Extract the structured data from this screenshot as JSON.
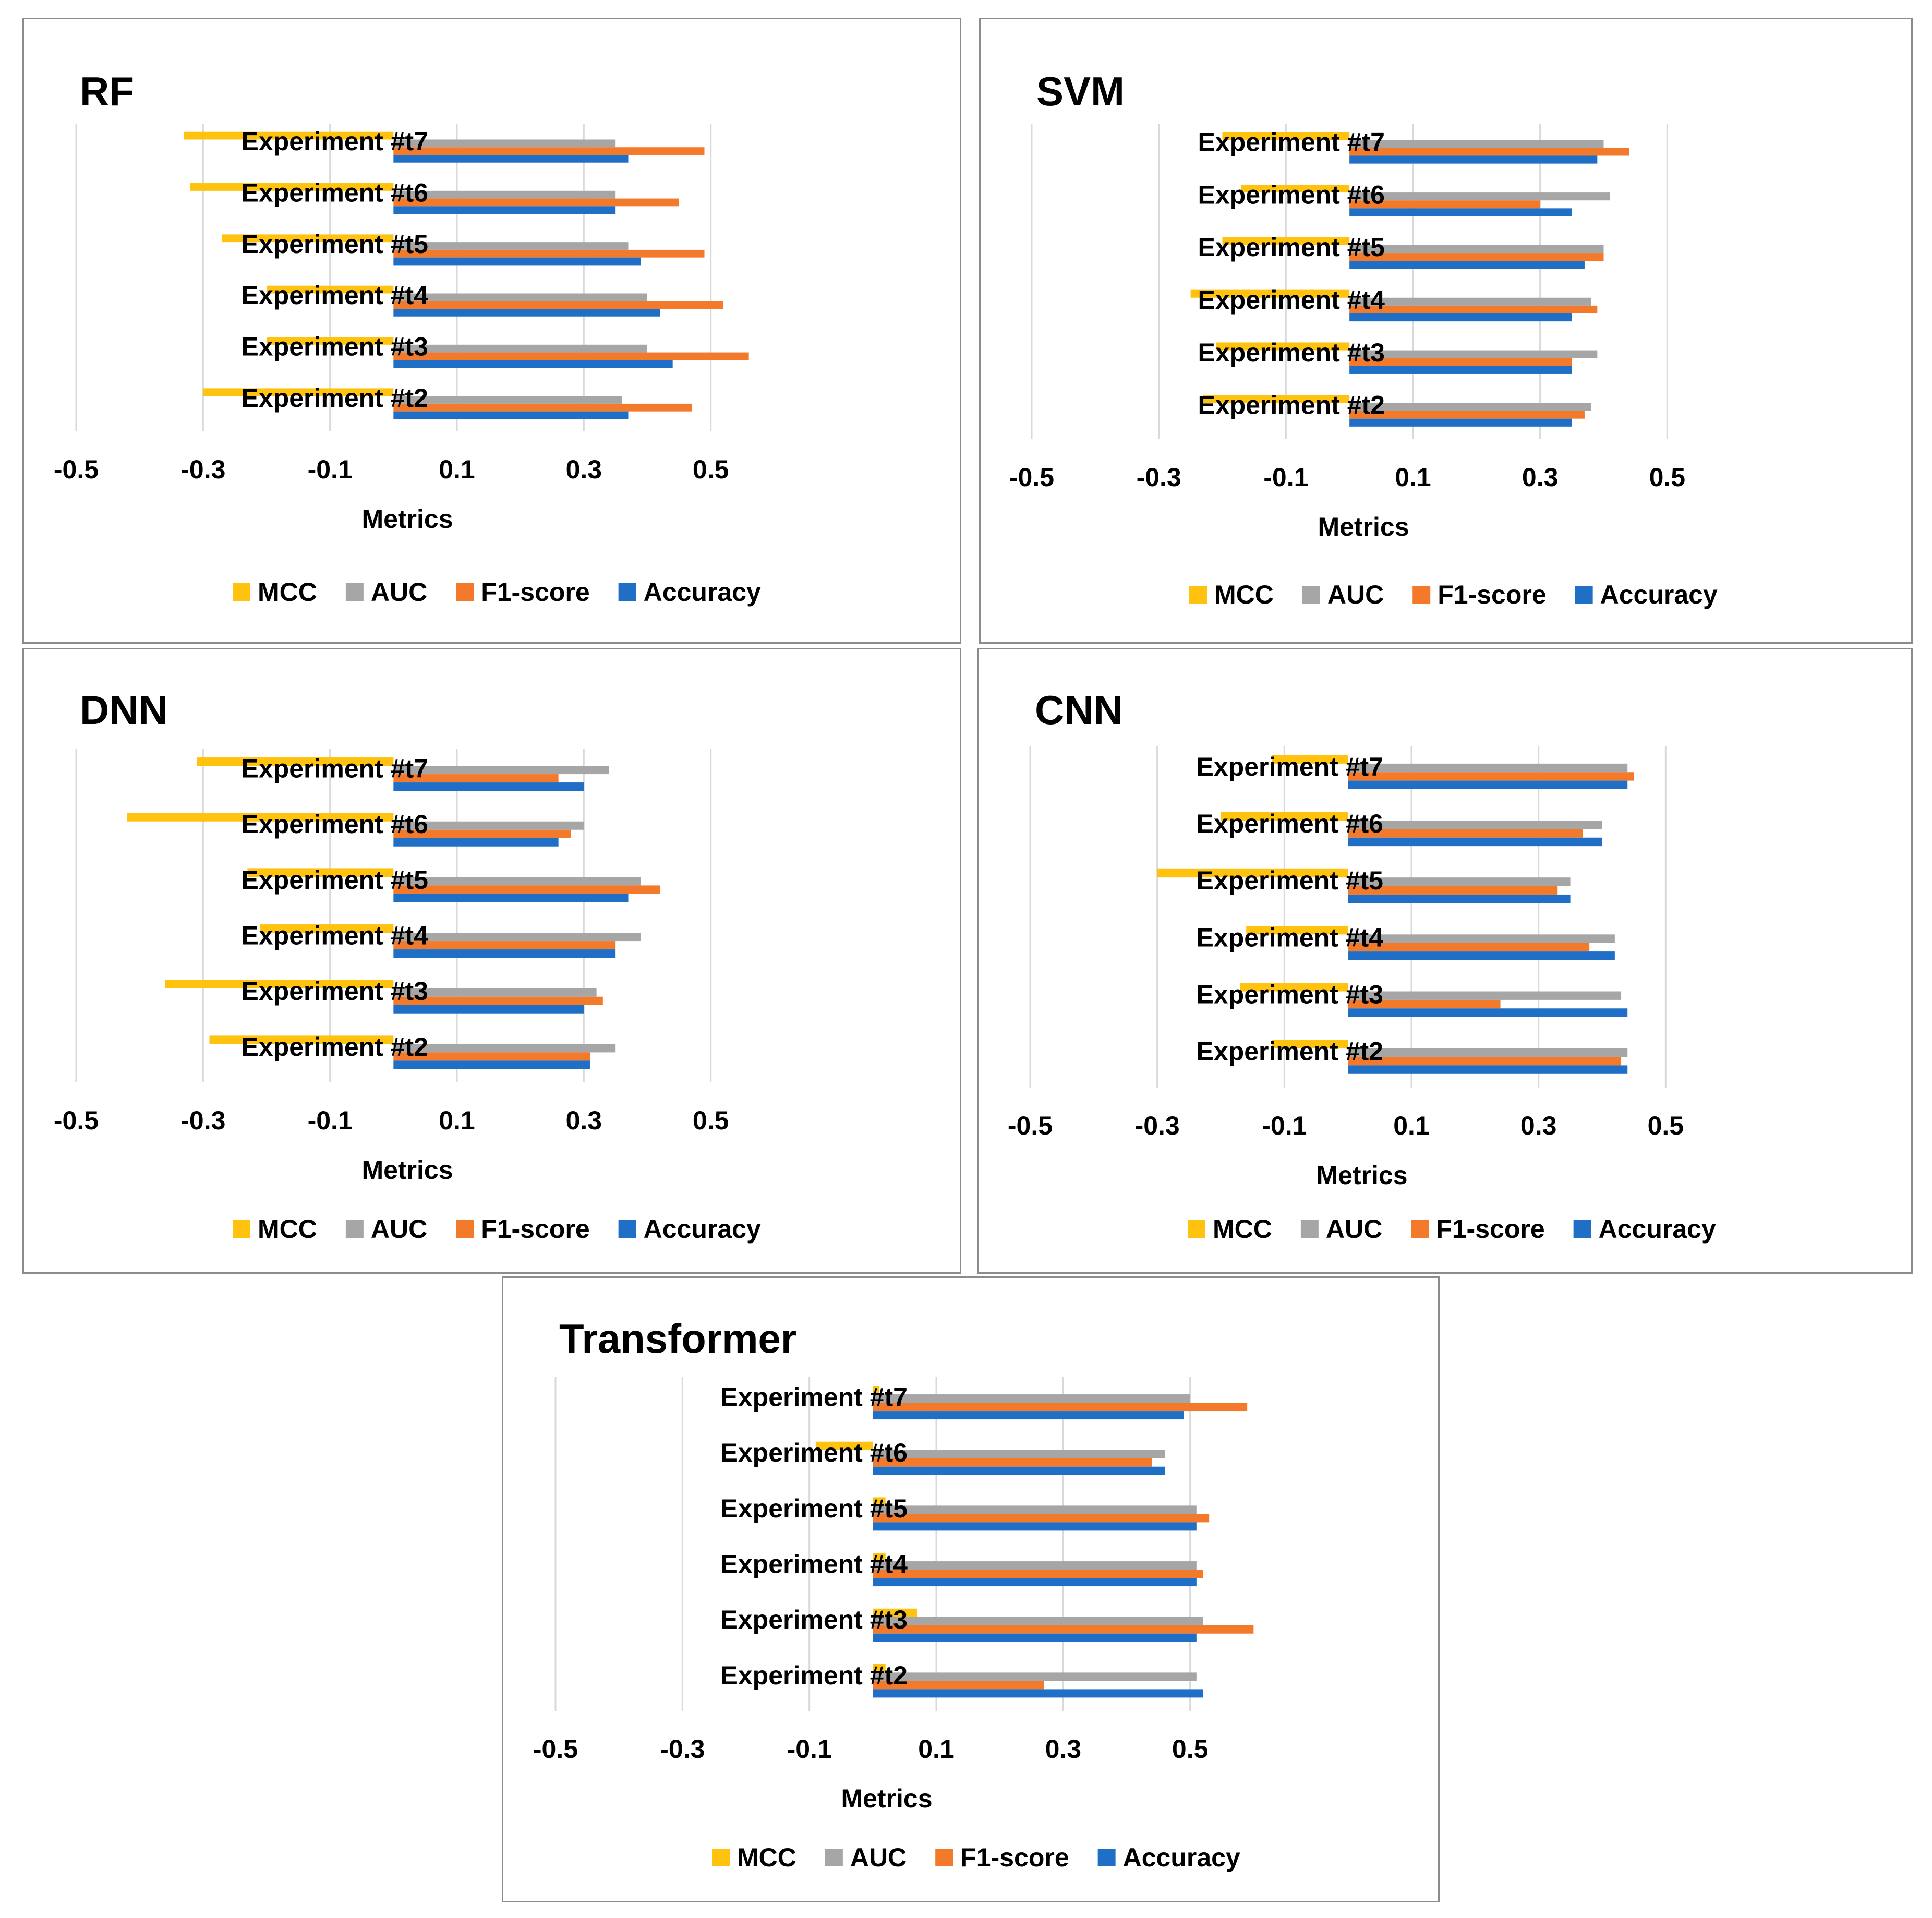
{
  "chart_data": [
    {
      "type": "bar",
      "orientation": "horizontal",
      "title": "RF",
      "xlabel": "Metrics",
      "ylabel": "",
      "xlim": [
        -0.5,
        0.7
      ],
      "xticks": [
        "-0.5",
        "-0.3",
        "-0.1",
        "0.1",
        "0.3",
        "0.5"
      ],
      "categories": [
        "Experiment #t2",
        "Experiment #t3",
        "Experiment #t4",
        "Experiment #t5",
        "Experiment #t6",
        "Experiment #t7"
      ],
      "series": [
        {
          "name": "Accuracy",
          "color": "#1f6fc6",
          "values": [
            0.37,
            0.44,
            0.42,
            0.39,
            0.35,
            0.37
          ]
        },
        {
          "name": "F1-score",
          "color": "#f47a2b",
          "values": [
            0.47,
            0.56,
            0.52,
            0.49,
            0.45,
            0.49
          ]
        },
        {
          "name": "AUC",
          "color": "#a6a6a6",
          "values": [
            0.36,
            0.4,
            0.4,
            0.37,
            0.35,
            0.35
          ]
        },
        {
          "name": "MCC",
          "color": "#ffc20e",
          "values": [
            -0.3,
            -0.2,
            -0.2,
            -0.27,
            -0.32,
            -0.33
          ]
        }
      ],
      "legend": [
        "MCC",
        "AUC",
        "F1-score",
        "Accuracy"
      ],
      "legend_position": "bottom",
      "grid": true
    },
    {
      "type": "bar",
      "orientation": "horizontal",
      "title": "SVM",
      "xlabel": "Metrics",
      "ylabel": "",
      "xlim": [
        -0.5,
        0.7
      ],
      "xticks": [
        "-0.5",
        "-0.3",
        "-0.1",
        "0.1",
        "0.3",
        "0.5"
      ],
      "categories": [
        "Experiment #t2",
        "Experiment #t3",
        "Experiment #t4",
        "Experiment #t5",
        "Experiment #t6",
        "Experiment #t7"
      ],
      "series": [
        {
          "name": "Accuracy",
          "color": "#1f6fc6",
          "values": [
            0.35,
            0.35,
            0.35,
            0.37,
            0.35,
            0.39
          ]
        },
        {
          "name": "F1-score",
          "color": "#f47a2b",
          "values": [
            0.37,
            0.35,
            0.39,
            0.4,
            0.3,
            0.44
          ]
        },
        {
          "name": "AUC",
          "color": "#a6a6a6",
          "values": [
            0.38,
            0.39,
            0.38,
            0.4,
            0.41,
            0.4
          ]
        },
        {
          "name": "MCC",
          "color": "#ffc20e",
          "values": [
            -0.23,
            -0.21,
            -0.25,
            -0.2,
            -0.17,
            -0.2
          ]
        }
      ],
      "legend": [
        "MCC",
        "AUC",
        "F1-score",
        "Accuracy"
      ],
      "legend_position": "bottom",
      "grid": true
    },
    {
      "type": "bar",
      "orientation": "horizontal",
      "title": "DNN",
      "xlabel": "Metrics",
      "ylabel": "",
      "xlim": [
        -0.5,
        0.7
      ],
      "xticks": [
        "-0.5",
        "-0.3",
        "-0.1",
        "0.1",
        "0.3",
        "0.5"
      ],
      "categories": [
        "Experiment #t2",
        "Experiment #t3",
        "Experiment #t4",
        "Experiment #t5",
        "Experiment #t6",
        "Experiment #t7"
      ],
      "series": [
        {
          "name": "Accuracy",
          "color": "#1f6fc6",
          "values": [
            0.31,
            0.3,
            0.35,
            0.37,
            0.26,
            0.3
          ]
        },
        {
          "name": "F1-score",
          "color": "#f47a2b",
          "values": [
            0.31,
            0.33,
            0.35,
            0.42,
            0.28,
            0.26
          ]
        },
        {
          "name": "AUC",
          "color": "#a6a6a6",
          "values": [
            0.35,
            0.32,
            0.39,
            0.39,
            0.3,
            0.34
          ]
        },
        {
          "name": "MCC",
          "color": "#ffc20e",
          "values": [
            -0.29,
            -0.36,
            -0.21,
            -0.23,
            -0.42,
            -0.31
          ]
        }
      ],
      "legend": [
        "MCC",
        "AUC",
        "F1-score",
        "Accuracy"
      ],
      "legend_position": "bottom",
      "grid": true
    },
    {
      "type": "bar",
      "orientation": "horizontal",
      "title": "CNN",
      "xlabel": "Metrics",
      "ylabel": "",
      "xlim": [
        -0.5,
        0.7
      ],
      "xticks": [
        "-0.5",
        "-0.3",
        "-0.1",
        "0.1",
        "0.3",
        "0.5"
      ],
      "categories": [
        "Experiment #t2",
        "Experiment #t3",
        "Experiment #t4",
        "Experiment #t5",
        "Experiment #t6",
        "Experiment #t7"
      ],
      "series": [
        {
          "name": "Accuracy",
          "color": "#1f6fc6",
          "values": [
            0.44,
            0.44,
            0.42,
            0.35,
            0.4,
            0.44
          ]
        },
        {
          "name": "F1-score",
          "color": "#f47a2b",
          "values": [
            0.43,
            0.24,
            0.38,
            0.33,
            0.37,
            0.45
          ]
        },
        {
          "name": "AUC",
          "color": "#a6a6a6",
          "values": [
            0.44,
            0.43,
            0.42,
            0.35,
            0.4,
            0.44
          ]
        },
        {
          "name": "MCC",
          "color": "#ffc20e",
          "values": [
            -0.12,
            -0.17,
            -0.16,
            -0.3,
            -0.2,
            -0.12
          ]
        }
      ],
      "legend": [
        "MCC",
        "AUC",
        "F1-score",
        "Accuracy"
      ],
      "legend_position": "bottom",
      "grid": true
    },
    {
      "type": "bar",
      "orientation": "horizontal",
      "title": "Transformer",
      "xlabel": "Metrics",
      "ylabel": "",
      "xlim": [
        -0.5,
        0.7
      ],
      "xticks": [
        "-0.5",
        "-0.3",
        "-0.1",
        "0.1",
        "0.3",
        "0.5"
      ],
      "categories": [
        "Experiment #t2",
        "Experiment #t3",
        "Experiment #t4",
        "Experiment #t5",
        "Experiment #t6",
        "Experiment #t7"
      ],
      "series": [
        {
          "name": "Accuracy",
          "color": "#1f6fc6",
          "values": [
            0.52,
            0.51,
            0.51,
            0.51,
            0.46,
            0.49
          ]
        },
        {
          "name": "F1-score",
          "color": "#f47a2b",
          "values": [
            0.27,
            0.6,
            0.52,
            0.53,
            0.44,
            0.59
          ]
        },
        {
          "name": "AUC",
          "color": "#a6a6a6",
          "values": [
            0.51,
            0.52,
            0.51,
            0.51,
            0.46,
            0.5
          ]
        },
        {
          "name": "MCC",
          "color": "#ffc20e",
          "values": [
            0.02,
            0.07,
            0.02,
            0.02,
            -0.09,
            0.01
          ]
        }
      ],
      "legend": [
        "MCC",
        "AUC",
        "F1-score",
        "Accuracy"
      ],
      "legend_position": "bottom",
      "grid": true
    }
  ]
}
